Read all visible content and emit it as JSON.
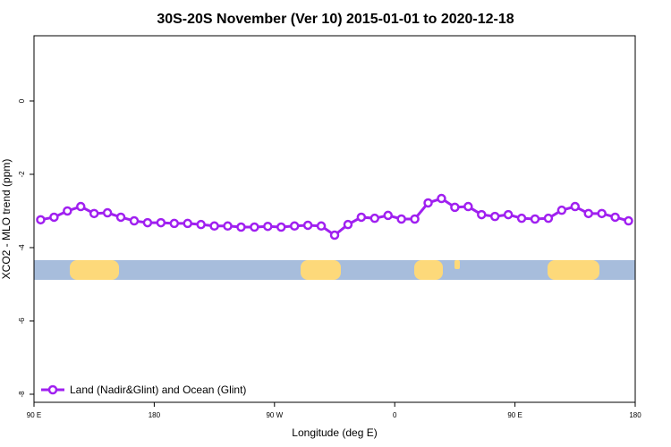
{
  "chart_data": {
    "type": "line",
    "title": "30S-20S November (Ver 10)   2015-01-01 to 2020-12-18",
    "xlabel": "Longitude (deg E)",
    "ylabel": "XCO2 - MLO trend (ppm)",
    "x": [
      95,
      105,
      115,
      125,
      135,
      145,
      155,
      165,
      175,
      185,
      195,
      205,
      215,
      225,
      235,
      245,
      255,
      265,
      275,
      285,
      295,
      305,
      315,
      325,
      335,
      345,
      355,
      365,
      375,
      385,
      395,
      405,
      415,
      425,
      435,
      445,
      455,
      465,
      475,
      485,
      495,
      505,
      515,
      525,
      535
    ],
    "series": [
      {
        "name": "Land (Nadir&Glint) and Ocean (Glint)",
        "color": "#a020f0",
        "values": [
          -3.24,
          -3.17,
          -3.0,
          -2.88,
          -3.07,
          -3.05,
          -3.17,
          -3.27,
          -3.32,
          -3.32,
          -3.34,
          -3.34,
          -3.37,
          -3.41,
          -3.41,
          -3.44,
          -3.44,
          -3.42,
          -3.44,
          -3.41,
          -3.39,
          -3.41,
          -3.66,
          -3.37,
          -3.17,
          -3.2,
          -3.12,
          -3.22,
          -3.22,
          -2.78,
          -2.66,
          -2.9,
          -2.88,
          -3.1,
          -3.15,
          -3.1,
          -3.2,
          -3.22,
          -3.2,
          -2.98,
          -2.88,
          -3.07,
          -3.07,
          -3.17,
          -3.27
        ]
      }
    ],
    "xlim": [
      90,
      540
    ],
    "xticks": [
      {
        "value": 90,
        "label": "90 E"
      },
      {
        "value": 180,
        "label": "180"
      },
      {
        "value": 270,
        "label": "90 W"
      },
      {
        "value": 360,
        "label": "0"
      },
      {
        "value": 450,
        "label": "90 E"
      },
      {
        "value": 540,
        "label": "180"
      }
    ],
    "ylim": [
      -8.22,
      1.78
    ],
    "yticks": [
      0,
      -2,
      -4,
      -6,
      -8
    ],
    "legend": "lower left"
  }
}
